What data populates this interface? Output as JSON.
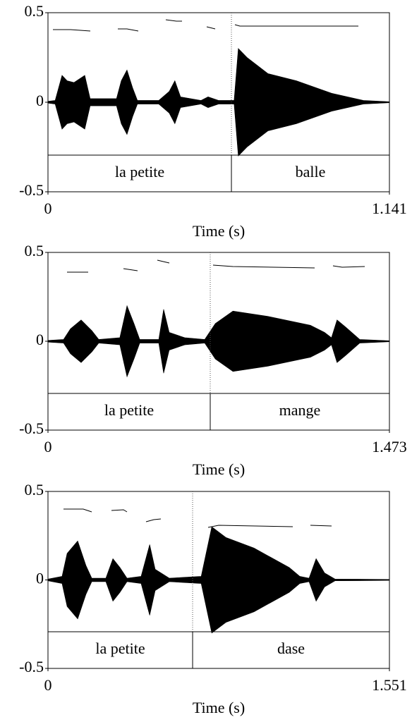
{
  "chart_data": [
    {
      "type": "waveform",
      "xlabel": "Time (s)",
      "xlim": [
        0,
        1.141
      ],
      "ylim": [
        -0.5,
        0.5
      ],
      "xticks": [
        0,
        1.141
      ],
      "yticks": [
        0.5,
        0,
        -0.5
      ],
      "x": [
        0,
        0.024,
        0.047,
        0.064,
        0.087,
        0.123,
        0.141,
        0.229,
        0.245,
        0.264,
        0.283,
        0.299,
        0.37,
        0.405,
        0.424,
        0.443,
        0.511,
        0.535,
        0.57,
        0.622,
        0.636,
        0.665,
        0.735,
        0.83,
        0.948,
        1.054,
        1.141
      ],
      "values": [
        0.005,
        0.01,
        0.15,
        0.12,
        0.11,
        0.15,
        0.02,
        0.02,
        0.12,
        0.18,
        0.08,
        0.01,
        0.01,
        0.06,
        0.12,
        0.03,
        0.01,
        0.03,
        0.01,
        0.01,
        0.3,
        0.25,
        0.16,
        0.12,
        0.05,
        0.01,
        0.003
      ],
      "intervals": [
        {
          "label": "la petite",
          "start": 0,
          "end": 0.613
        },
        {
          "label": "balle",
          "start": 0.613,
          "end": 1.141
        }
      ]
    },
    {
      "type": "waveform",
      "xlabel": "Time (s)",
      "xlim": [
        0,
        1.473
      ],
      "ylim": [
        -0.5,
        0.5
      ],
      "xticks": [
        0,
        1.473
      ],
      "yticks": [
        0.5,
        0,
        -0.5
      ],
      "x": [
        0,
        0.067,
        0.097,
        0.143,
        0.189,
        0.219,
        0.31,
        0.341,
        0.371,
        0.396,
        0.478,
        0.499,
        0.523,
        0.59,
        0.676,
        0.722,
        0.798,
        0.949,
        1.132,
        1.193,
        1.223,
        1.247,
        1.284,
        1.345,
        1.473
      ],
      "values": [
        0.005,
        0.01,
        0.07,
        0.12,
        0.06,
        0.01,
        0.02,
        0.2,
        0.1,
        0.01,
        0.01,
        0.18,
        0.05,
        0.02,
        0.01,
        0.1,
        0.17,
        0.14,
        0.09,
        0.05,
        0.02,
        0.12,
        0.08,
        0.01,
        0.003
      ],
      "intervals": [
        {
          "label": "la petite",
          "start": 0,
          "end": 0.7
        },
        {
          "label": "mange",
          "start": 0.7,
          "end": 1.473
        }
      ]
    },
    {
      "type": "waveform",
      "xlabel": "Time (s)",
      "xlim": [
        0,
        1.551
      ],
      "ylim": [
        -0.5,
        0.5
      ],
      "xticks": [
        0,
        1.551
      ],
      "yticks": [
        0.5,
        0,
        -0.5
      ],
      "x": [
        0,
        0.064,
        0.087,
        0.135,
        0.173,
        0.199,
        0.263,
        0.295,
        0.327,
        0.359,
        0.423,
        0.462,
        0.487,
        0.551,
        0.696,
        0.744,
        0.808,
        0.936,
        1.096,
        1.144,
        1.186,
        1.218,
        1.256,
        1.304,
        1.551
      ],
      "values": [
        0.005,
        0.02,
        0.15,
        0.22,
        0.08,
        0.01,
        0.01,
        0.12,
        0.07,
        0.01,
        0.02,
        0.2,
        0.06,
        0.01,
        0.02,
        0.3,
        0.24,
        0.18,
        0.07,
        0.02,
        0.01,
        0.12,
        0.04,
        0.005,
        0.003
      ],
      "intervals": [
        {
          "label": "la petite",
          "start": 0,
          "end": 0.657
        },
        {
          "label": "dase",
          "start": 0.657,
          "end": 1.551
        }
      ]
    }
  ]
}
